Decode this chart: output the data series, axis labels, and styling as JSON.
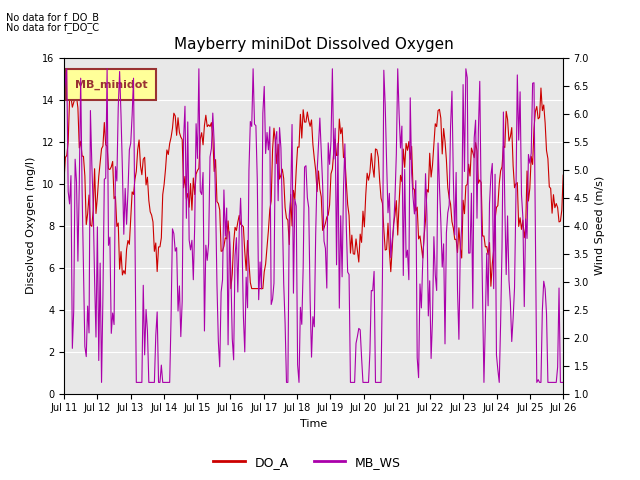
{
  "title": "Mayberry miniDot Dissolved Oxygen",
  "xlabel": "Time",
  "ylabel_left": "Dissolved Oxygen (mg/l)",
  "ylabel_right": "Wind Speed (m/s)",
  "annotations": [
    "No data for f_DO_B",
    "No data for f_DO_C"
  ],
  "legend_box_label": "MB_minidot",
  "legend_entries": [
    "DO_A",
    "MB_WS"
  ],
  "do_color": "#cc0000",
  "ws_color": "#aa00aa",
  "ylim_left": [
    0,
    16
  ],
  "ylim_right": [
    1.0,
    7.0
  ],
  "yticks_left": [
    0,
    2,
    4,
    6,
    8,
    10,
    12,
    14,
    16
  ],
  "yticks_right": [
    1.0,
    1.5,
    2.0,
    2.5,
    3.0,
    3.5,
    4.0,
    4.5,
    5.0,
    5.5,
    6.0,
    6.5,
    7.0
  ],
  "x_labels": [
    "Jul 11",
    "Jul 12",
    "Jul 13",
    "Jul 14",
    "Jul 15",
    "Jul 16",
    "Jul 17",
    "Jul 18",
    "Jul 19",
    "Jul 20",
    "Jul 21",
    "Jul 22",
    "Jul 23",
    "Jul 24",
    "Jul 25",
    "Jul 26"
  ],
  "plot_bg_color": "#e8e8e8",
  "grid_color": "#ffffff",
  "legend_box_facecolor": "#ffff99",
  "legend_box_edgecolor": "#993333",
  "annotation_fontsize": 7,
  "title_fontsize": 11,
  "axis_label_fontsize": 8,
  "tick_fontsize": 7
}
